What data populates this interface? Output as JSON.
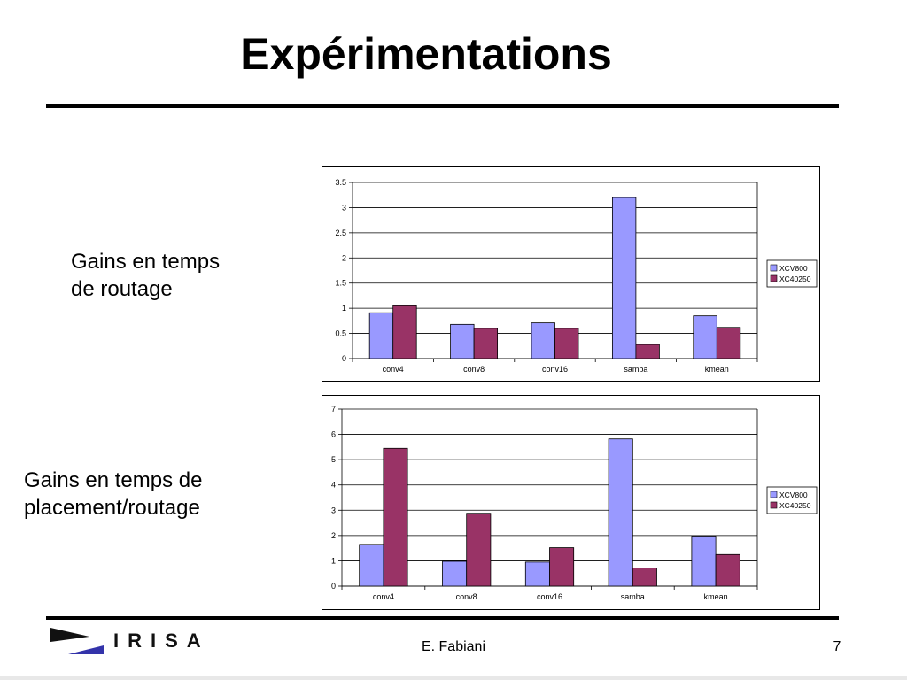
{
  "slide": {
    "title": "Expérimentations",
    "label_routage": "Gains en temps\nde routage",
    "label_placement": "Gains en temps de\nplacement/routage",
    "logo_text": "IRISA",
    "author": "E. Fabiani",
    "page_number": "7"
  },
  "colors": {
    "series1": "#9999ff",
    "series2": "#993366",
    "logo_flag": "#111111",
    "logo_blue": "#3333aa"
  },
  "chart_data": [
    {
      "type": "bar",
      "title": "",
      "xlabel": "",
      "ylabel": "",
      "categories": [
        "conv4",
        "conv8",
        "conv16",
        "samba",
        "kmean"
      ],
      "series": [
        {
          "name": "XCV800",
          "values": [
            0.91,
            0.68,
            0.71,
            3.2,
            0.85
          ]
        },
        {
          "name": "XC40250",
          "values": [
            1.05,
            0.6,
            0.6,
            0.28,
            0.62
          ]
        }
      ],
      "ylim": [
        0,
        3.5
      ],
      "yticks": [
        "0",
        "0.5",
        "1",
        "1.5",
        "2",
        "2.5",
        "3",
        "3.5"
      ],
      "grid": true,
      "legend": "right"
    },
    {
      "type": "bar",
      "title": "",
      "xlabel": "",
      "ylabel": "",
      "categories": [
        "conv4",
        "conv8",
        "conv16",
        "samba",
        "kmean"
      ],
      "series": [
        {
          "name": "XCV800",
          "values": [
            1.65,
            0.98,
            0.95,
            5.82,
            1.98
          ]
        },
        {
          "name": "XC40250",
          "values": [
            5.45,
            2.88,
            1.52,
            0.72,
            1.25
          ]
        }
      ],
      "ylim": [
        0,
        7
      ],
      "yticks": [
        "0",
        "1",
        "2",
        "3",
        "4",
        "5",
        "6",
        "7"
      ],
      "grid": true,
      "legend": "right"
    }
  ]
}
